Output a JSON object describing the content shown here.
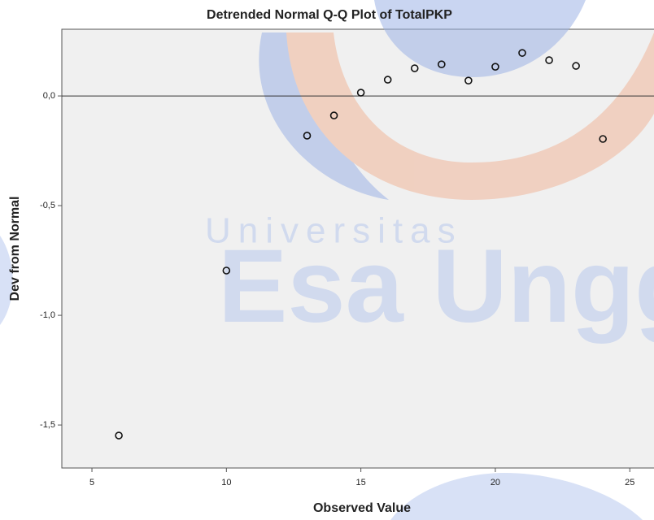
{
  "chart_data": {
    "type": "scatter",
    "title": "Detrended Normal Q-Q Plot of TotalPKP",
    "x_label": "Observed Value",
    "y_label": "Dev from Normal",
    "x": [
      6,
      10,
      13,
      14,
      15,
      16,
      17,
      18,
      19,
      20,
      21,
      22,
      23,
      24
    ],
    "values": [
      -1.548,
      -0.796,
      -0.181,
      -0.089,
      0.015,
      0.074,
      0.126,
      0.144,
      0.07,
      0.133,
      0.196,
      0.163,
      0.137,
      -0.196
    ],
    "color": "#111111",
    "xlim": [
      3.88,
      25.9
    ],
    "ylim": [
      -1.696,
      0.304
    ],
    "xticks": [
      5,
      10,
      15,
      20,
      25
    ],
    "yticks": [
      {
        "value": 0,
        "label": "0,0"
      },
      {
        "value": -0.5,
        "label": "-0,5"
      },
      {
        "value": -1,
        "label": "-1,0"
      },
      {
        "value": -1.5,
        "label": "-1,5"
      }
    ],
    "reference_line": 0,
    "watermark": {
      "line1": "Universitas",
      "line2": "Esa Unggul"
    }
  }
}
